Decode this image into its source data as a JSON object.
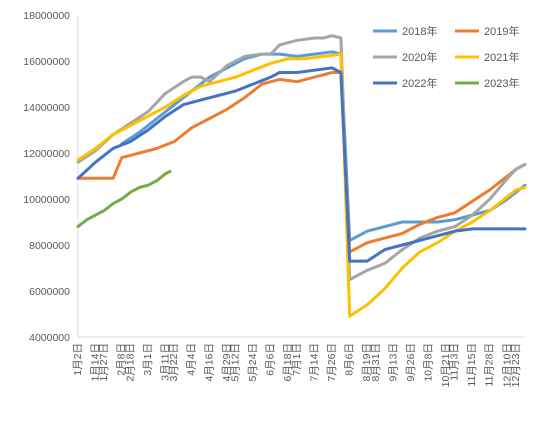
{
  "chart_data": {
    "type": "line",
    "title": "",
    "xlabel": "",
    "ylabel": "",
    "ylim": [
      4000000,
      18000000
    ],
    "y_ticks": [
      4000000,
      6000000,
      8000000,
      10000000,
      12000000,
      14000000,
      16000000,
      18000000
    ],
    "x_range_weeks": [
      1,
      52
    ],
    "categories": [
      "1月2日",
      "1月14日",
      "1月27日",
      "2月8日",
      "2月18日",
      "3月1日",
      "3月11日",
      "3月22日",
      "4月4日",
      "4月16日",
      "4月29日",
      "5月12日",
      "5月24日",
      "6月6日",
      "6月18日",
      "7月1日",
      "7月14日",
      "7月26日",
      "8月6日",
      "8月19日",
      "8月31日",
      "9月13日",
      "9月26日",
      "10月8日",
      "10月21日",
      "11月3日",
      "11月15日",
      "11月28日",
      "12月10日",
      "12月23日"
    ],
    "x_weeks": [
      1,
      3,
      4,
      6,
      7,
      9,
      11,
      12,
      14,
      16,
      18,
      19,
      21,
      23,
      25,
      26,
      28,
      30,
      32,
      34,
      35,
      37,
      39,
      41,
      43,
      44,
      46,
      48,
      50,
      51
    ],
    "legend_position": "top-right",
    "grid": false,
    "series": [
      {
        "name": "2018年",
        "color": "#5B9BD5",
        "points": [
          [
            6,
            12400000
          ],
          [
            8,
            12900000
          ],
          [
            10,
            13500000
          ],
          [
            12,
            14100000
          ],
          [
            14,
            14700000
          ],
          [
            16,
            15300000
          ],
          [
            18,
            15700000
          ],
          [
            20,
            16100000
          ],
          [
            22,
            16300000
          ],
          [
            24,
            16300000
          ],
          [
            26,
            16200000
          ],
          [
            28,
            16300000
          ],
          [
            30,
            16400000
          ],
          [
            31,
            16300000
          ],
          [
            32,
            8200000
          ],
          [
            34,
            8600000
          ],
          [
            36,
            8800000
          ],
          [
            38,
            9000000
          ],
          [
            40,
            9000000
          ],
          [
            42,
            9000000
          ],
          [
            44,
            9100000
          ],
          [
            46,
            9300000
          ],
          [
            48,
            9500000
          ],
          [
            50,
            10000000
          ],
          [
            51,
            10300000
          ],
          [
            52,
            10600000
          ]
        ]
      },
      {
        "name": "2019年",
        "color": "#ED7D31",
        "points": [
          [
            1,
            10900000
          ],
          [
            3,
            10900000
          ],
          [
            5,
            10900000
          ],
          [
            6,
            11800000
          ],
          [
            8,
            12000000
          ],
          [
            10,
            12200000
          ],
          [
            12,
            12500000
          ],
          [
            14,
            13100000
          ],
          [
            16,
            13500000
          ],
          [
            18,
            13900000
          ],
          [
            20,
            14400000
          ],
          [
            22,
            15000000
          ],
          [
            24,
            15200000
          ],
          [
            26,
            15100000
          ],
          [
            28,
            15300000
          ],
          [
            30,
            15500000
          ],
          [
            31,
            15500000
          ],
          [
            32,
            7700000
          ],
          [
            34,
            8100000
          ],
          [
            36,
            8300000
          ],
          [
            38,
            8500000
          ],
          [
            40,
            8900000
          ],
          [
            42,
            9200000
          ],
          [
            44,
            9400000
          ],
          [
            46,
            9900000
          ],
          [
            48,
            10400000
          ],
          [
            50,
            11000000
          ],
          [
            51,
            11300000
          ],
          [
            52,
            11500000
          ]
        ]
      },
      {
        "name": "2020年",
        "color": "#A5A5A5",
        "points": [
          [
            1,
            11600000
          ],
          [
            3,
            12100000
          ],
          [
            5,
            12800000
          ],
          [
            7,
            13300000
          ],
          [
            9,
            13800000
          ],
          [
            11,
            14600000
          ],
          [
            13,
            15100000
          ],
          [
            14,
            15300000
          ],
          [
            15,
            15300000
          ],
          [
            16,
            15100000
          ],
          [
            18,
            15800000
          ],
          [
            20,
            16200000
          ],
          [
            22,
            16300000
          ],
          [
            23,
            16300000
          ],
          [
            24,
            16700000
          ],
          [
            26,
            16900000
          ],
          [
            28,
            17000000
          ],
          [
            29,
            17000000
          ],
          [
            30,
            17100000
          ],
          [
            31,
            17000000
          ],
          [
            32,
            6500000
          ],
          [
            34,
            6900000
          ],
          [
            36,
            7200000
          ],
          [
            38,
            7800000
          ],
          [
            40,
            8300000
          ],
          [
            42,
            8600000
          ],
          [
            44,
            8800000
          ],
          [
            46,
            9300000
          ],
          [
            48,
            10000000
          ],
          [
            50,
            10900000
          ],
          [
            51,
            11300000
          ],
          [
            52,
            11500000
          ]
        ]
      },
      {
        "name": "2021年",
        "color": "#FFC000",
        "points": [
          [
            1,
            11700000
          ],
          [
            3,
            12200000
          ],
          [
            5,
            12800000
          ],
          [
            7,
            13200000
          ],
          [
            9,
            13600000
          ],
          [
            11,
            14000000
          ],
          [
            13,
            14500000
          ],
          [
            15,
            14900000
          ],
          [
            17,
            15100000
          ],
          [
            19,
            15300000
          ],
          [
            21,
            15600000
          ],
          [
            23,
            15900000
          ],
          [
            25,
            16100000
          ],
          [
            27,
            16100000
          ],
          [
            29,
            16200000
          ],
          [
            31,
            16300000
          ],
          [
            32,
            4900000
          ],
          [
            34,
            5400000
          ],
          [
            36,
            6100000
          ],
          [
            38,
            7000000
          ],
          [
            40,
            7700000
          ],
          [
            42,
            8100000
          ],
          [
            44,
            8600000
          ],
          [
            46,
            9000000
          ],
          [
            48,
            9500000
          ],
          [
            50,
            10100000
          ],
          [
            51,
            10400000
          ],
          [
            52,
            10500000
          ]
        ]
      },
      {
        "name": "2022年",
        "color": "#4472C4",
        "points": [
          [
            1,
            10900000
          ],
          [
            3,
            11600000
          ],
          [
            5,
            12200000
          ],
          [
            7,
            12500000
          ],
          [
            9,
            13000000
          ],
          [
            11,
            13600000
          ],
          [
            13,
            14100000
          ],
          [
            15,
            14300000
          ],
          [
            17,
            14500000
          ],
          [
            19,
            14700000
          ],
          [
            21,
            15000000
          ],
          [
            23,
            15300000
          ],
          [
            24,
            15500000
          ],
          [
            26,
            15500000
          ],
          [
            28,
            15600000
          ],
          [
            30,
            15700000
          ],
          [
            31,
            15500000
          ],
          [
            32,
            7300000
          ],
          [
            34,
            7300000
          ],
          [
            36,
            7800000
          ],
          [
            38,
            8000000
          ],
          [
            40,
            8200000
          ],
          [
            42,
            8400000
          ],
          [
            44,
            8600000
          ],
          [
            46,
            8700000
          ],
          [
            48,
            8700000
          ],
          [
            50,
            8700000
          ],
          [
            51,
            8700000
          ],
          [
            52,
            8700000
          ]
        ]
      },
      {
        "name": "2023年",
        "color": "#70AD47",
        "points": [
          [
            1,
            8800000
          ],
          [
            2,
            9100000
          ],
          [
            3,
            9300000
          ],
          [
            4,
            9500000
          ],
          [
            5,
            9800000
          ],
          [
            6,
            10000000
          ],
          [
            7,
            10300000
          ],
          [
            8,
            10500000
          ],
          [
            9,
            10600000
          ],
          [
            10,
            10800000
          ],
          [
            11,
            11100000
          ],
          [
            11.5,
            11200000
          ]
        ]
      }
    ]
  }
}
